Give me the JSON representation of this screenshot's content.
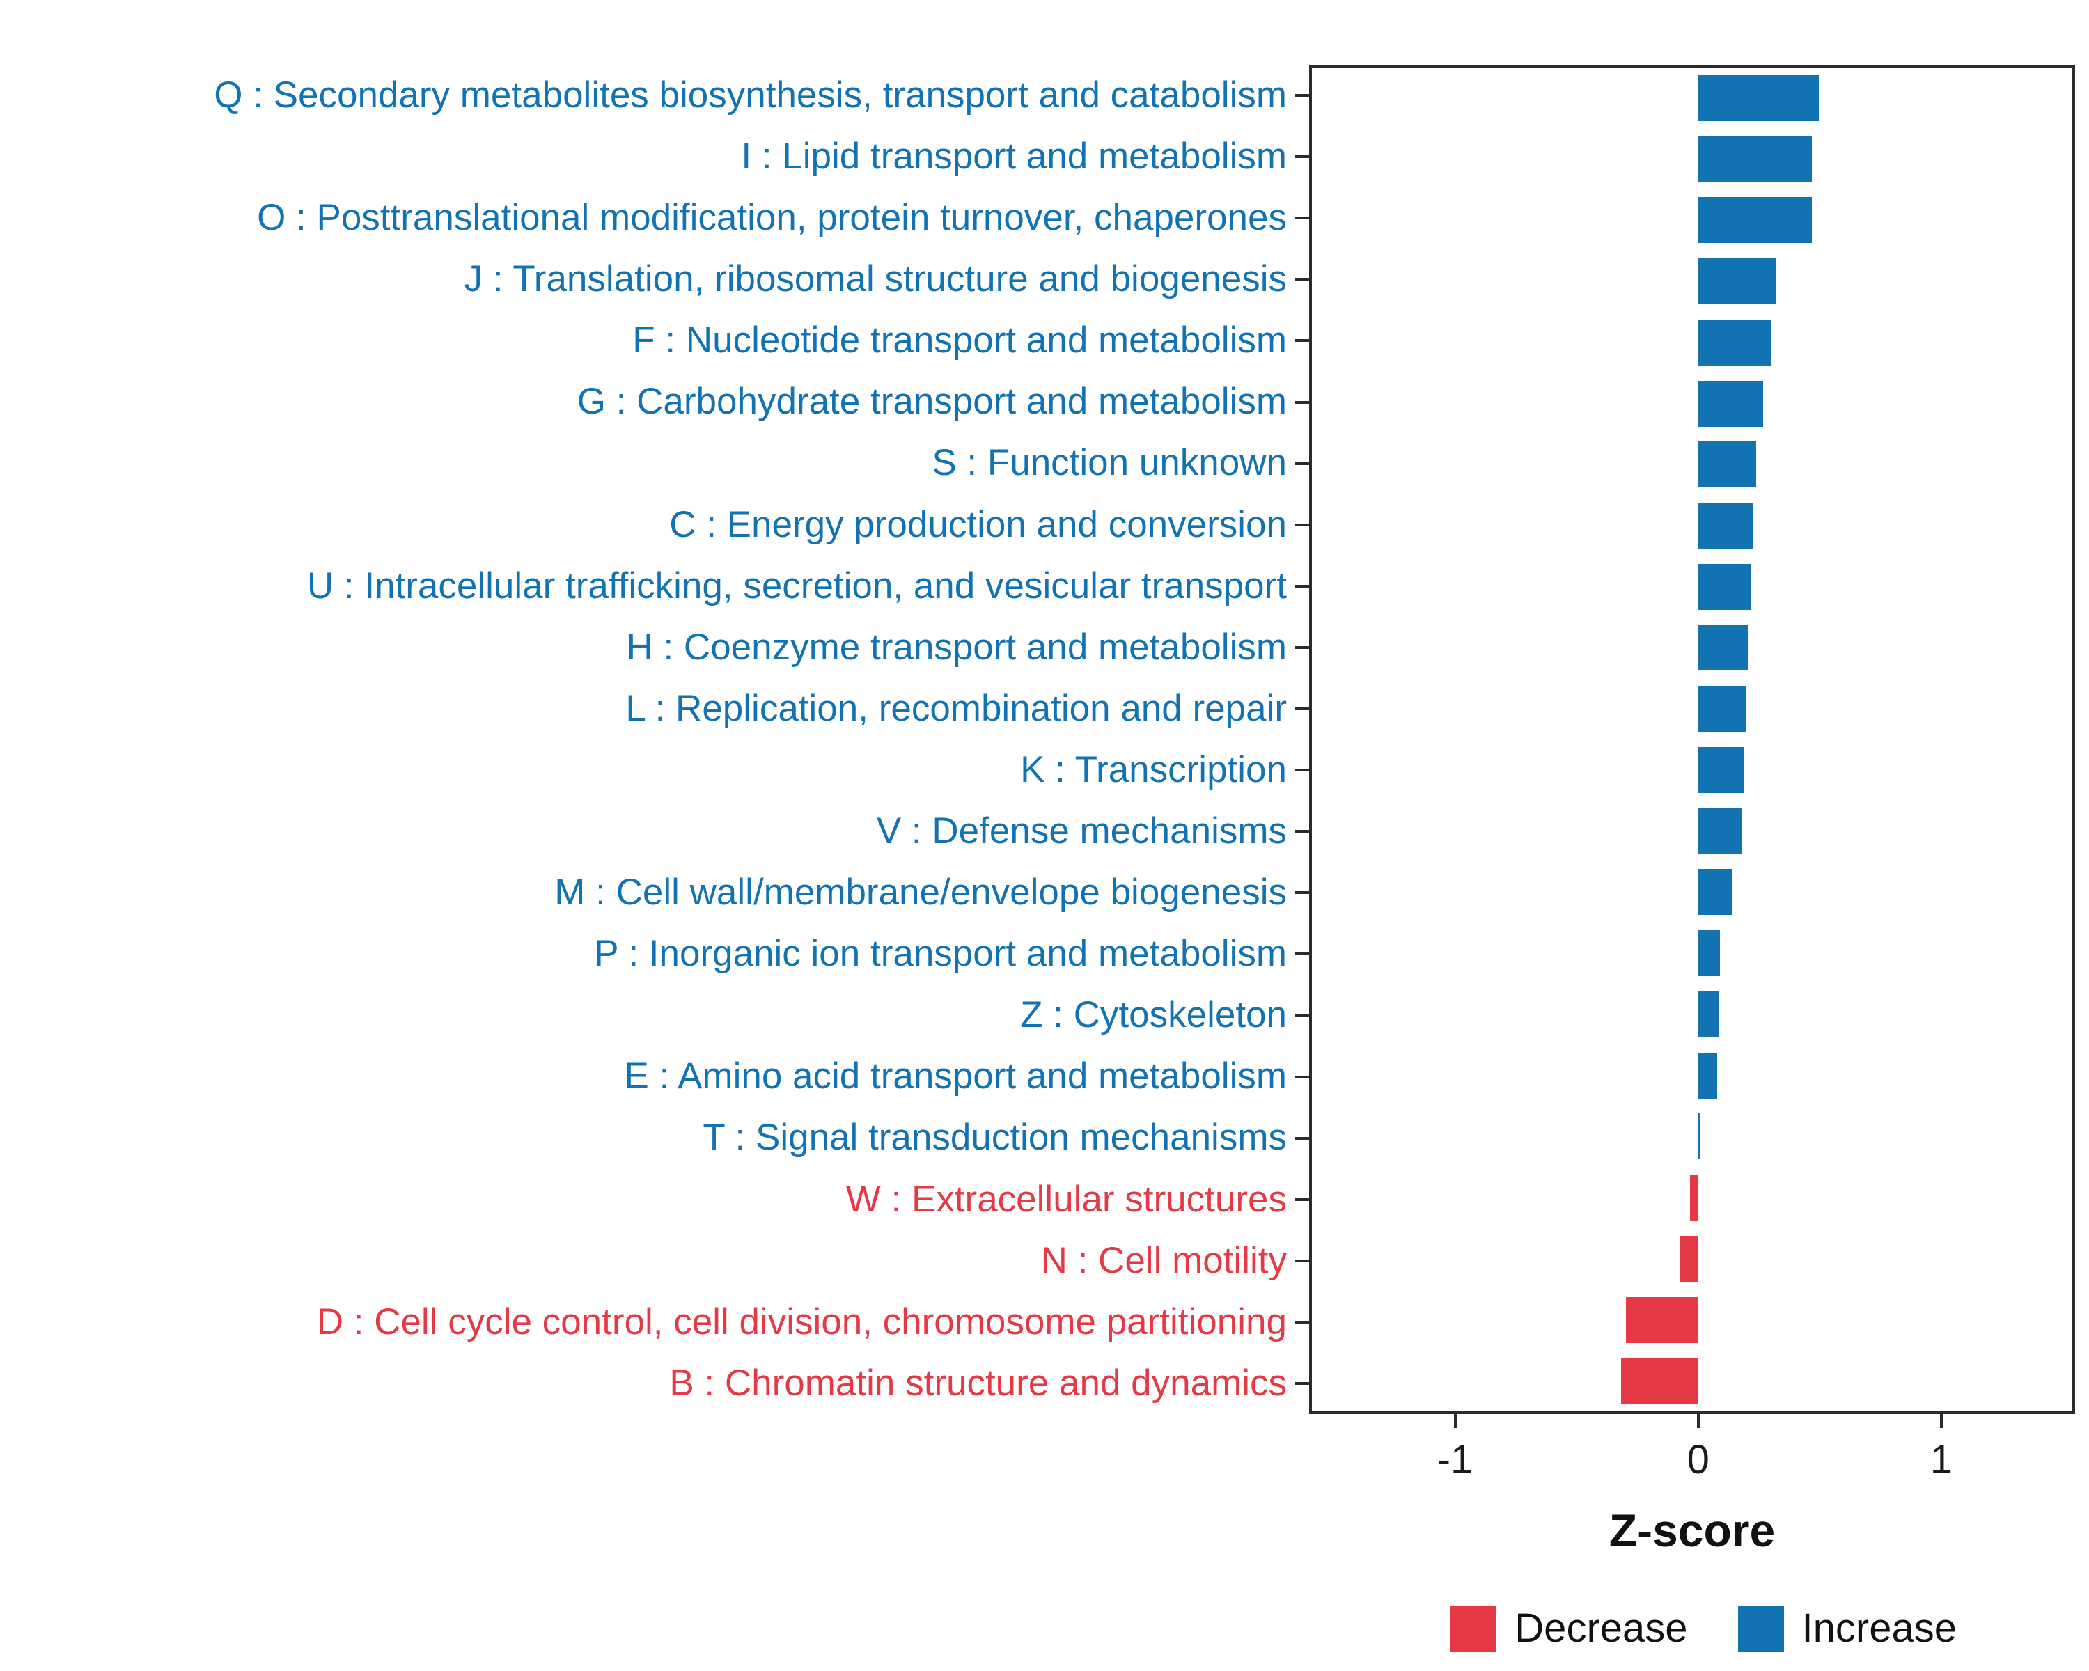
{
  "chart_data": {
    "type": "bar",
    "orientation": "horizontal",
    "title": "",
    "xlabel": "Z-score",
    "ylabel": "",
    "x_domain": [
      -1.6,
      1.55
    ],
    "x_ticks": [
      -1,
      0,
      1
    ],
    "x_tick_labels": [
      "-1",
      "0",
      "1"
    ],
    "grid": "off",
    "legend_position": "bottom-right",
    "colors": {
      "increase": "#1272B2",
      "decrease": "#E63946",
      "axis": "#2b2b2b"
    },
    "legend": [
      {
        "label": "Decrease",
        "direction": "decrease"
      },
      {
        "label": "Increase",
        "direction": "increase"
      }
    ],
    "categories": [
      {
        "label": "Q : Secondary metabolites biosynthesis, transport and catabolism",
        "value": 0.5,
        "direction": "increase"
      },
      {
        "label": "I : Lipid transport and metabolism",
        "value": 0.47,
        "direction": "increase"
      },
      {
        "label": "O : Posttranslational modification, protein turnover, chaperones",
        "value": 0.47,
        "direction": "increase"
      },
      {
        "label": "J : Translation, ribosomal structure and biogenesis",
        "value": 0.32,
        "direction": "increase"
      },
      {
        "label": "F : Nucleotide transport and metabolism",
        "value": 0.3,
        "direction": "increase"
      },
      {
        "label": "G : Carbohydrate transport and metabolism",
        "value": 0.27,
        "direction": "increase"
      },
      {
        "label": "S : Function unknown",
        "value": 0.24,
        "direction": "increase"
      },
      {
        "label": "C : Energy production and conversion",
        "value": 0.23,
        "direction": "increase"
      },
      {
        "label": "U : Intracellular trafficking, secretion, and vesicular transport",
        "value": 0.22,
        "direction": "increase"
      },
      {
        "label": "H : Coenzyme transport and metabolism",
        "value": 0.21,
        "direction": "increase"
      },
      {
        "label": "L : Replication, recombination and repair",
        "value": 0.2,
        "direction": "increase"
      },
      {
        "label": "K : Transcription",
        "value": 0.19,
        "direction": "increase"
      },
      {
        "label": "V : Defense mechanisms",
        "value": 0.18,
        "direction": "increase"
      },
      {
        "label": "M : Cell wall/membrane/envelope biogenesis",
        "value": 0.14,
        "direction": "increase"
      },
      {
        "label": "P : Inorganic ion transport and metabolism",
        "value": 0.09,
        "direction": "increase"
      },
      {
        "label": "Z : Cytoskeleton",
        "value": 0.085,
        "direction": "increase"
      },
      {
        "label": "E : Amino acid transport and metabolism",
        "value": 0.08,
        "direction": "increase"
      },
      {
        "label": "T : Signal transduction mechanisms",
        "value": 0.01,
        "direction": "increase"
      },
      {
        "label": "W : Extracellular structures",
        "value": -0.035,
        "direction": "decrease"
      },
      {
        "label": "N : Cell motility",
        "value": -0.075,
        "direction": "decrease"
      },
      {
        "label": "D : Cell cycle control, cell division, chromosome partitioning",
        "value": -0.3,
        "direction": "decrease"
      },
      {
        "label": "B : Chromatin structure and dynamics",
        "value": -0.32,
        "direction": "decrease"
      }
    ]
  }
}
